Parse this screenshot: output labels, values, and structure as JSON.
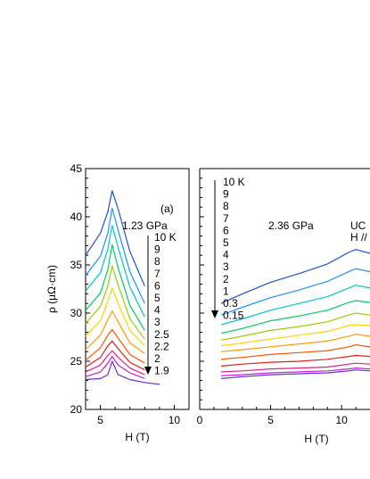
{
  "chart_data": [
    {
      "type": "line",
      "panel_label": "(a)",
      "annotation": "1.23 GPa",
      "xlabel": "H (T)",
      "ylabel": "ρ (μΩ·cm)",
      "xlim": [
        4,
        11
      ],
      "ylim": [
        20,
        45
      ],
      "xticks": [
        "5",
        "10"
      ],
      "yticks": [
        "20",
        "25",
        "30",
        "35",
        "40",
        "45"
      ],
      "temperature_labels": [
        "10 K",
        "9",
        "8",
        "7",
        "6",
        "5",
        "4",
        "3",
        "2.5",
        "2.2",
        "2",
        "1.9"
      ],
      "series": [
        {
          "name": "10 K",
          "color": "#1f4fd8",
          "x": [
            4,
            5,
            5.5,
            5.8,
            6.2,
            7,
            8
          ],
          "y": [
            36,
            38.3,
            40.5,
            42.7,
            40.8,
            36.4,
            32.8
          ]
        },
        {
          "name": "9",
          "color": "#1e90ff",
          "x": [
            4,
            5,
            5.5,
            5.8,
            6.2,
            7,
            8
          ],
          "y": [
            33.9,
            35.9,
            38.3,
            40.9,
            38.6,
            34.3,
            31
          ]
        },
        {
          "name": "8",
          "color": "#00c8c8",
          "x": [
            4,
            5,
            5.5,
            5.8,
            6.2,
            7,
            8
          ],
          "y": [
            32.3,
            34.2,
            36.6,
            39.1,
            36.8,
            32.7,
            29.6
          ]
        },
        {
          "name": "7",
          "color": "#00cc66",
          "x": [
            4,
            5,
            5.5,
            5.8,
            6.2,
            7,
            8
          ],
          "y": [
            30.3,
            32.1,
            34.5,
            37.1,
            34.7,
            30.8,
            28.2
          ]
        },
        {
          "name": "6",
          "color": "#9ccc00",
          "x": [
            4,
            5,
            5.5,
            5.8,
            6.2,
            7,
            8
          ],
          "y": [
            28.9,
            30.7,
            32.8,
            34.9,
            32.9,
            29.4,
            27.3
          ]
        },
        {
          "name": "5",
          "color": "#ffd400",
          "x": [
            4,
            5,
            5.5,
            5.8,
            6.2,
            7,
            8
          ],
          "y": [
            27.6,
            29.2,
            31.2,
            32.6,
            31,
            28.2,
            26.6
          ]
        },
        {
          "name": "4",
          "color": "#ff9900",
          "x": [
            4,
            5,
            5.5,
            5.8,
            6.2,
            7,
            8
          ],
          "y": [
            26.2,
            27.7,
            29.3,
            30.2,
            29.1,
            26.9,
            25.8
          ]
        },
        {
          "name": "3",
          "color": "#ff5500",
          "x": [
            4,
            5,
            5.5,
            5.8,
            6.2,
            7,
            8
          ],
          "y": [
            25.1,
            26.4,
            27.7,
            28.3,
            27.4,
            25.7,
            24.8
          ]
        },
        {
          "name": "2.5",
          "color": "#e81c1c",
          "x": [
            4,
            5,
            5.5,
            5.8,
            6.2,
            7,
            8
          ],
          "y": [
            24.4,
            25.4,
            26.6,
            27.1,
            26.3,
            24.9,
            24.1
          ]
        },
        {
          "name": "2.2",
          "color": "#e0208f",
          "x": [
            4,
            5,
            5.5,
            5.8,
            6.2,
            7,
            8
          ],
          "y": [
            23.9,
            24.6,
            25.6,
            26.1,
            25.4,
            24.3,
            23.6
          ]
        },
        {
          "name": "2",
          "color": "#c020d0",
          "x": [
            4,
            5,
            5.5,
            5.8,
            6.2,
            7,
            8
          ],
          "y": [
            23.4,
            23.9,
            24.8,
            25.5,
            24.6,
            23.8,
            23.2
          ]
        },
        {
          "name": "1.9",
          "color": "#6a2bd8",
          "x": [
            4,
            5,
            5.5,
            5.8,
            6.2,
            7,
            8,
            9
          ],
          "y": [
            23.1,
            23.2,
            23.6,
            25,
            23.6,
            23.1,
            22.8,
            22.6
          ]
        }
      ]
    },
    {
      "type": "line",
      "annotation": "2.36 GPa",
      "corner_text": [
        "UC",
        "H //"
      ],
      "xlabel": "H (T)",
      "xlim": [
        0,
        12
      ],
      "xticks": [
        "0",
        "5",
        "10"
      ],
      "temperature_labels": [
        "10 K",
        "9",
        "8",
        "7",
        "6",
        "5",
        "4",
        "3",
        "2",
        "1",
        "0.3",
        "0.15"
      ],
      "series": [
        {
          "name": "10 K",
          "color": "#1f4fd8",
          "x": [
            1.5,
            3,
            5,
            7,
            9,
            10.5,
            11,
            12
          ],
          "y": [
            31,
            32,
            33.2,
            34.1,
            35.1,
            36.3,
            36.6,
            36.2
          ]
        },
        {
          "name": "9",
          "color": "#1e90ff",
          "x": [
            1.5,
            3,
            5,
            7,
            9,
            10.5,
            11,
            12
          ],
          "y": [
            29.8,
            30.6,
            31.6,
            32.4,
            33.3,
            34.3,
            34.6,
            34.3
          ]
        },
        {
          "name": "8",
          "color": "#00c8c8",
          "x": [
            1.5,
            3,
            5,
            7,
            9,
            10.5,
            11,
            12
          ],
          "y": [
            28.8,
            29.4,
            30.3,
            31,
            31.7,
            32.6,
            32.9,
            32.6
          ]
        },
        {
          "name": "7",
          "color": "#00cc66",
          "x": [
            1.5,
            3,
            5,
            7,
            9,
            10.5,
            11,
            12
          ],
          "y": [
            27.9,
            28.4,
            29.2,
            29.7,
            30.3,
            31.1,
            31.3,
            31.1
          ]
        },
        {
          "name": "6",
          "color": "#9ccc00",
          "x": [
            1.5,
            3,
            5,
            7,
            9,
            10.5,
            11,
            12
          ],
          "y": [
            27.2,
            27.6,
            28.2,
            28.6,
            29.1,
            29.8,
            30,
            29.8
          ]
        },
        {
          "name": "5",
          "color": "#ffd400",
          "x": [
            1.5,
            3,
            5,
            7,
            9,
            10.5,
            11,
            12
          ],
          "y": [
            26.6,
            26.9,
            27.3,
            27.7,
            28.1,
            28.7,
            28.8,
            28.7
          ]
        },
        {
          "name": "4",
          "color": "#ff9900",
          "x": [
            1.5,
            3,
            5,
            7,
            9,
            10.5,
            11,
            12
          ],
          "y": [
            26,
            26.2,
            26.5,
            26.8,
            27.1,
            27.6,
            27.8,
            27.6
          ]
        },
        {
          "name": "3",
          "color": "#ff5500",
          "x": [
            1.5,
            3,
            5,
            7,
            9,
            10.5,
            11,
            12
          ],
          "y": [
            25.2,
            25.4,
            25.7,
            25.9,
            26.1,
            26.5,
            26.7,
            26.5
          ]
        },
        {
          "name": "2",
          "color": "#e81c1c",
          "x": [
            1.5,
            3,
            5,
            7,
            9,
            10.5,
            11,
            12
          ],
          "y": [
            24.5,
            24.7,
            24.9,
            25,
            25.2,
            25.5,
            25.6,
            25.5
          ]
        },
        {
          "name": "1",
          "color": "#e0208f",
          "x": [
            1.5,
            3,
            5,
            7,
            9,
            10.5,
            11,
            12
          ],
          "y": [
            23.9,
            24,
            24.2,
            24.3,
            24.4,
            24.7,
            24.8,
            24.7
          ]
        },
        {
          "name": "0.3",
          "color": "#c020d0",
          "x": [
            1.5,
            3,
            5,
            7,
            9,
            10.5,
            11,
            12
          ],
          "y": [
            23.5,
            23.6,
            23.8,
            23.9,
            24,
            24.2,
            24.3,
            24.2
          ]
        },
        {
          "name": "0.15",
          "color": "#6a2bd8",
          "x": [
            1.5,
            3,
            5,
            7,
            9,
            10.5,
            11,
            12
          ],
          "y": [
            23.2,
            23.4,
            23.6,
            23.7,
            23.8,
            24,
            24.1,
            24
          ]
        }
      ]
    }
  ]
}
